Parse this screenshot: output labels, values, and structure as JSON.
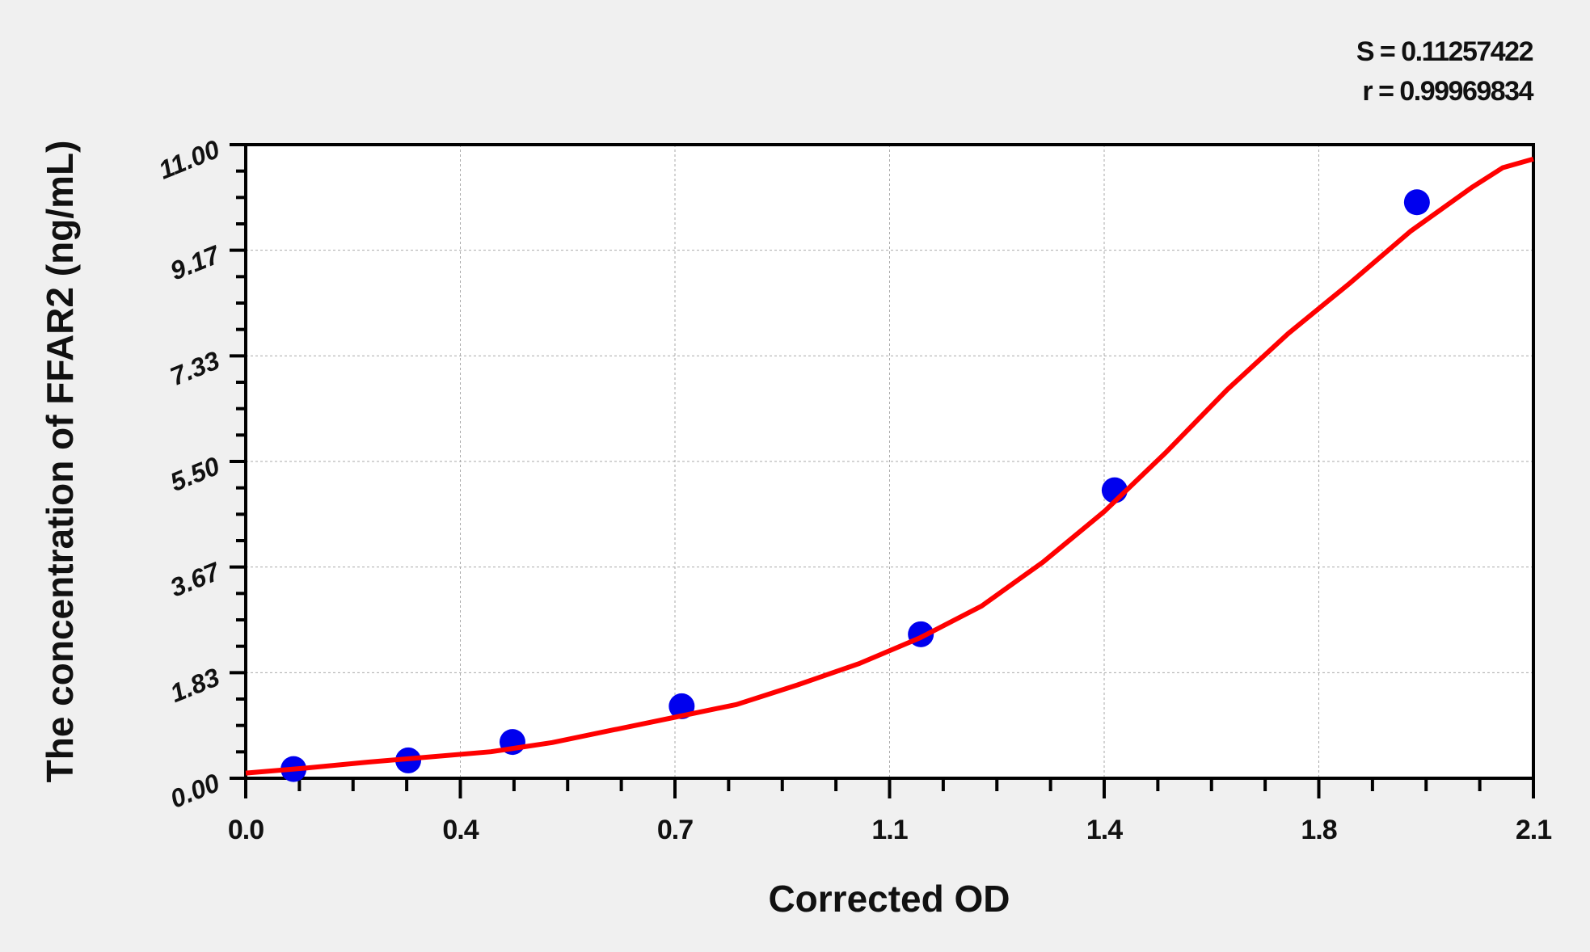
{
  "chart_data": {
    "type": "scatter",
    "title": "",
    "xlabel": "Corrected OD",
    "ylabel": "The concentration of FFAR2 (ng/mL)",
    "xlim": [
      0,
      2.1
    ],
    "ylim": [
      0,
      11
    ],
    "x_ticks": [
      "0.0",
      "0.4",
      "0.7",
      "1.1",
      "1.4",
      "1.8",
      "2.1"
    ],
    "y_ticks": [
      "0.00",
      "1.83",
      "3.67",
      "5.50",
      "7.33",
      "9.17",
      "11.00"
    ],
    "grid": true,
    "annotations": {
      "s": "S = 0.11257422",
      "r": "r = 0.99969834"
    },
    "colors": {
      "points": "#0000ee",
      "curve": "#ff0000",
      "background": "#f0f0f0",
      "plot": "#ffffff"
    },
    "series": [
      {
        "type": "scatter",
        "x": [
          0.078,
          0.265,
          0.435,
          0.711,
          1.101,
          1.417,
          1.91
        ],
        "y": [
          0.16,
          0.31,
          0.63,
          1.25,
          2.5,
          5,
          10
        ]
      },
      {
        "type": "line",
        "x": [
          0,
          0.1,
          0.2,
          0.3,
          0.4,
          0.5,
          0.6,
          0.7,
          0.8,
          0.9,
          1.0,
          1.1,
          1.2,
          1.3,
          1.4,
          1.5,
          1.6,
          1.7,
          1.8,
          1.9,
          2.0,
          2.05,
          2.1
        ],
        "y": [
          0.09,
          0.18,
          0.28,
          0.37,
          0.46,
          0.62,
          0.84,
          1.06,
          1.28,
          1.62,
          1.99,
          2.44,
          2.99,
          3.75,
          4.63,
          5.65,
          6.74,
          7.72,
          8.59,
          9.5,
          10.26,
          10.6,
          10.75
        ]
      }
    ]
  }
}
